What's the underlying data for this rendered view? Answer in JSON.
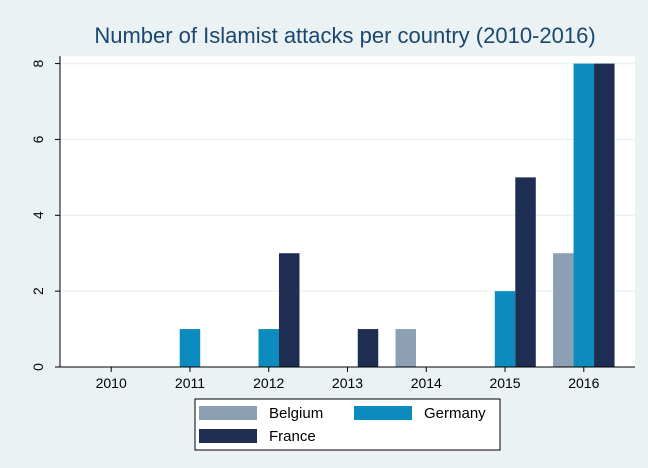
{
  "chart_data": {
    "type": "bar",
    "title": "Number of Islamist attacks per country (2010-2016)",
    "categories": [
      "2010",
      "2011",
      "2012",
      "2013",
      "2014",
      "2015",
      "2016"
    ],
    "series": [
      {
        "name": "Belgium",
        "values": [
          0,
          0,
          0,
          0,
          1,
          0,
          3
        ],
        "color": "#8ca0b4"
      },
      {
        "name": "Germany",
        "values": [
          0,
          1,
          1,
          0,
          0,
          2,
          8
        ],
        "color": "#0c8bbe"
      },
      {
        "name": "France",
        "values": [
          0,
          0,
          3,
          1,
          0,
          5,
          8
        ],
        "color": "#1e2d52"
      }
    ],
    "ylim": [
      0,
      8.2
    ],
    "yticks": [
      "0",
      "2",
      "4",
      "6",
      "8"
    ],
    "grid": true,
    "legend_position": "bottom"
  }
}
